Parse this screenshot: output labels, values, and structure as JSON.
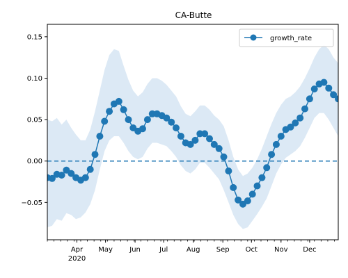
{
  "chart_data": {
    "type": "line",
    "title": "CA-Butte",
    "xlabel": "",
    "ylabel": "",
    "xlim": [
      "2020-03-01",
      "2020-12-31"
    ],
    "ylim": [
      -0.095,
      0.165
    ],
    "x_ticks": [
      {
        "date": "2020-04-01",
        "label": "Apr",
        "sublabel": "2020"
      },
      {
        "date": "2020-05-01",
        "label": "May",
        "sublabel": ""
      },
      {
        "date": "2020-06-01",
        "label": "Jun",
        "sublabel": ""
      },
      {
        "date": "2020-07-01",
        "label": "Jul",
        "sublabel": ""
      },
      {
        "date": "2020-08-01",
        "label": "Aug",
        "sublabel": ""
      },
      {
        "date": "2020-09-01",
        "label": "Sep",
        "sublabel": ""
      },
      {
        "date": "2020-10-01",
        "label": "Oct",
        "sublabel": ""
      },
      {
        "date": "2020-11-01",
        "label": "Nov",
        "sublabel": ""
      },
      {
        "date": "2020-12-01",
        "label": "Dec",
        "sublabel": ""
      }
    ],
    "y_ticks": [
      {
        "value": -0.05,
        "label": "−0.05"
      },
      {
        "value": 0.0,
        "label": "0.00"
      },
      {
        "value": 0.05,
        "label": "0.05"
      },
      {
        "value": 0.1,
        "label": "0.10"
      },
      {
        "value": 0.15,
        "label": "0.15"
      }
    ],
    "legend": {
      "position": "upper right",
      "entries": [
        "growth_rate"
      ]
    },
    "grid": false,
    "reference_line": {
      "y": 0.0,
      "style": "dashed",
      "color": "#1f77b4"
    },
    "series": [
      {
        "name": "growth_rate",
        "color": "#1f77b4",
        "marker": "circle",
        "band_color": "#dce9f5",
        "points": [
          [
            "2020-03-01",
            -0.02
          ],
          [
            "2020-03-06",
            -0.021
          ],
          [
            "2020-03-11",
            -0.016
          ],
          [
            "2020-03-16",
            -0.017
          ],
          [
            "2020-03-21",
            -0.011
          ],
          [
            "2020-03-26",
            -0.015
          ],
          [
            "2020-03-31",
            -0.02
          ],
          [
            "2020-04-05",
            -0.023
          ],
          [
            "2020-04-10",
            -0.02
          ],
          [
            "2020-04-15",
            -0.01
          ],
          [
            "2020-04-20",
            0.008
          ],
          [
            "2020-04-25",
            0.03
          ],
          [
            "2020-04-30",
            0.048
          ],
          [
            "2020-05-05",
            0.06
          ],
          [
            "2020-05-10",
            0.069
          ],
          [
            "2020-05-15",
            0.072
          ],
          [
            "2020-05-20",
            0.062
          ],
          [
            "2020-05-25",
            0.05
          ],
          [
            "2020-05-30",
            0.04
          ],
          [
            "2020-06-04",
            0.036
          ],
          [
            "2020-06-09",
            0.039
          ],
          [
            "2020-06-14",
            0.05
          ],
          [
            "2020-06-19",
            0.057
          ],
          [
            "2020-06-24",
            0.057
          ],
          [
            "2020-06-29",
            0.055
          ],
          [
            "2020-07-04",
            0.052
          ],
          [
            "2020-07-09",
            0.047
          ],
          [
            "2020-07-14",
            0.04
          ],
          [
            "2020-07-19",
            0.03
          ],
          [
            "2020-07-24",
            0.022
          ],
          [
            "2020-07-29",
            0.02
          ],
          [
            "2020-08-03",
            0.025
          ],
          [
            "2020-08-08",
            0.033
          ],
          [
            "2020-08-13",
            0.033
          ],
          [
            "2020-08-18",
            0.027
          ],
          [
            "2020-08-23",
            0.02
          ],
          [
            "2020-08-28",
            0.015
          ],
          [
            "2020-09-02",
            0.005
          ],
          [
            "2020-09-07",
            -0.012
          ],
          [
            "2020-09-12",
            -0.032
          ],
          [
            "2020-09-17",
            -0.047
          ],
          [
            "2020-09-22",
            -0.052
          ],
          [
            "2020-09-27",
            -0.048
          ],
          [
            "2020-10-02",
            -0.04
          ],
          [
            "2020-10-07",
            -0.03
          ],
          [
            "2020-10-12",
            -0.02
          ],
          [
            "2020-10-17",
            -0.008
          ],
          [
            "2020-10-22",
            0.008
          ],
          [
            "2020-10-27",
            0.02
          ],
          [
            "2020-11-01",
            0.03
          ],
          [
            "2020-11-06",
            0.038
          ],
          [
            "2020-11-11",
            0.041
          ],
          [
            "2020-11-16",
            0.046
          ],
          [
            "2020-11-21",
            0.052
          ],
          [
            "2020-11-26",
            0.063
          ],
          [
            "2020-12-01",
            0.075
          ],
          [
            "2020-12-06",
            0.087
          ],
          [
            "2020-12-11",
            0.093
          ],
          [
            "2020-12-16",
            0.095
          ],
          [
            "2020-12-21",
            0.088
          ],
          [
            "2020-12-26",
            0.08
          ],
          [
            "2020-12-31",
            0.075
          ]
        ],
        "band_lower": [
          -0.08,
          -0.078,
          -0.07,
          -0.072,
          -0.063,
          -0.065,
          -0.07,
          -0.068,
          -0.062,
          -0.052,
          -0.035,
          -0.01,
          0.012,
          0.025,
          0.03,
          0.03,
          0.022,
          0.012,
          0.005,
          0.002,
          0.005,
          0.015,
          0.022,
          0.022,
          0.02,
          0.018,
          0.012,
          0.005,
          -0.005,
          -0.012,
          -0.015,
          -0.01,
          -0.002,
          -0.002,
          -0.008,
          -0.015,
          -0.022,
          -0.035,
          -0.05,
          -0.065,
          -0.076,
          -0.082,
          -0.08,
          -0.072,
          -0.064,
          -0.055,
          -0.045,
          -0.03,
          -0.015,
          -0.004,
          0.004,
          0.008,
          0.012,
          0.018,
          0.028,
          0.04,
          0.052,
          0.058,
          0.058,
          0.05,
          0.04,
          0.03
        ],
        "band_upper": [
          0.05,
          0.048,
          0.052,
          0.044,
          0.05,
          0.04,
          0.032,
          0.025,
          0.025,
          0.038,
          0.06,
          0.085,
          0.11,
          0.128,
          0.135,
          0.133,
          0.115,
          0.098,
          0.085,
          0.078,
          0.083,
          0.093,
          0.1,
          0.1,
          0.097,
          0.092,
          0.085,
          0.078,
          0.066,
          0.057,
          0.054,
          0.06,
          0.067,
          0.067,
          0.062,
          0.055,
          0.05,
          0.042,
          0.025,
          0.005,
          -0.01,
          -0.018,
          -0.015,
          -0.008,
          0.002,
          0.015,
          0.03,
          0.045,
          0.058,
          0.068,
          0.075,
          0.078,
          0.083,
          0.09,
          0.1,
          0.112,
          0.125,
          0.135,
          0.14,
          0.135,
          0.125,
          0.118
        ]
      }
    ]
  }
}
